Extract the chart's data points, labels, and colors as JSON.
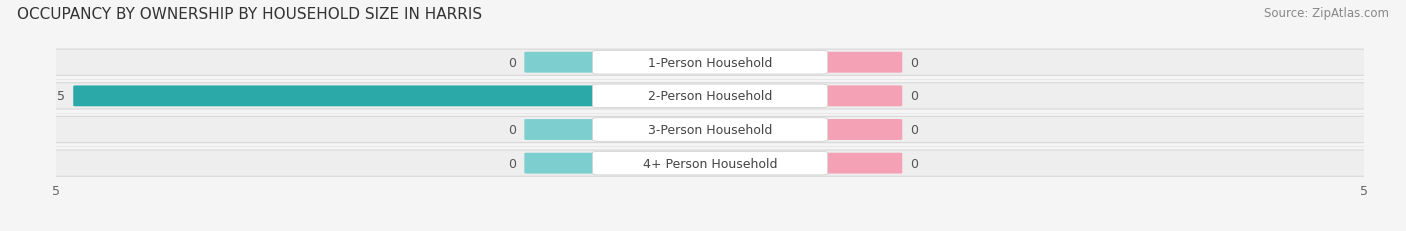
{
  "title": "OCCUPANCY BY OWNERSHIP BY HOUSEHOLD SIZE IN HARRIS",
  "source": "Source: ZipAtlas.com",
  "categories": [
    "1-Person Household",
    "2-Person Household",
    "3-Person Household",
    "4+ Person Household"
  ],
  "owner_values": [
    0,
    5,
    0,
    0
  ],
  "renter_values": [
    0,
    0,
    0,
    0
  ],
  "owner_color_active": "#2ba8a8",
  "owner_color_inactive": "#7dcece",
  "renter_color": "#f4a0b5",
  "bar_bg_color": "#eeeeee",
  "bar_bg_edge_color": "#d8d8d8",
  "xlim_left": -5,
  "xlim_right": 5,
  "bar_height": 0.7,
  "label_bg_color": "#ffffff",
  "title_fontsize": 11,
  "source_fontsize": 8.5,
  "tick_fontsize": 9,
  "legend_fontsize": 9,
  "category_fontsize": 9,
  "value_fontsize": 9,
  "fig_bg_color": "#f5f5f5"
}
